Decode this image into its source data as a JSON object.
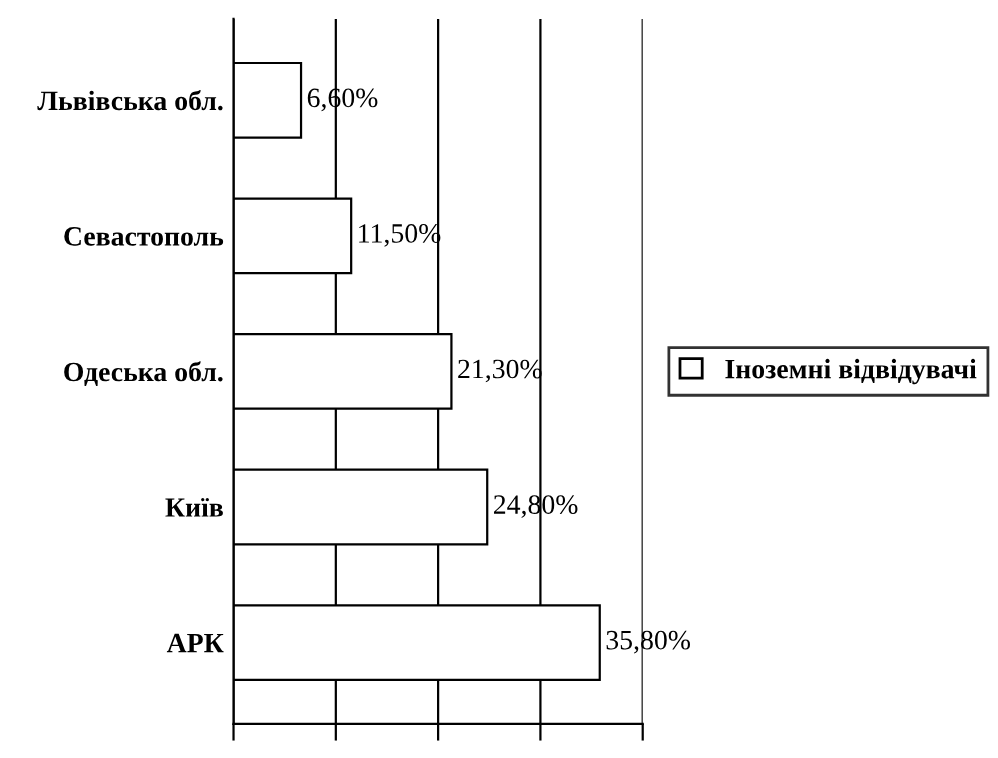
{
  "chart_data": {
    "type": "bar",
    "orientation": "horizontal",
    "categories": [
      "Львівська обл.",
      "Севастополь",
      "Одеська обл.",
      "Київ",
      "АРК"
    ],
    "series": [
      {
        "name": "Іноземні відвідувачі",
        "color": "#ffffff",
        "values": [
          6.6,
          11.5,
          21.3,
          24.8,
          35.8
        ],
        "value_labels": [
          "6,60%",
          "11,50%",
          "21,30%",
          "24,80%",
          "35,80%"
        ]
      }
    ],
    "xlim": [
      0,
      40
    ],
    "xticks": [
      {
        "value": 0,
        "label": null
      },
      {
        "value": 10,
        "label": null
      },
      {
        "value": 20,
        "label": null
      },
      {
        "value": 30,
        "label": null
      },
      {
        "value": 40,
        "label": null
      }
    ],
    "tick_labels": "y",
    "grid": "x",
    "legend": "right"
  }
}
